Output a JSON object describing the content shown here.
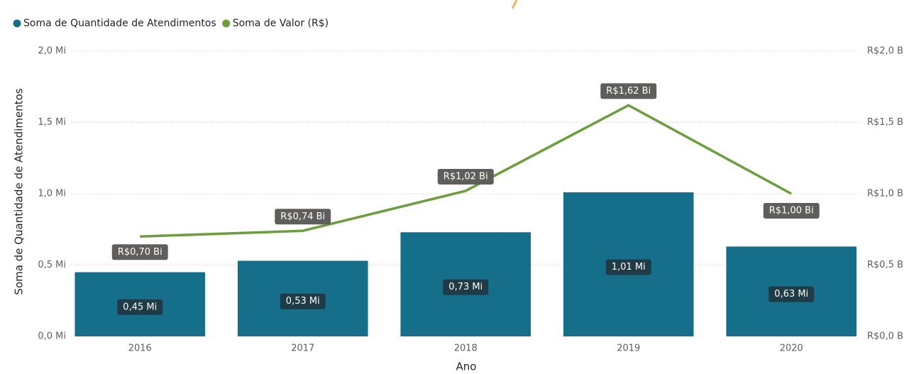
{
  "chart_data": {
    "type": "bar-line",
    "x_label": "Ano",
    "y_label": "Soma de Quantidade de Atendimentos",
    "categories": [
      "2016",
      "2017",
      "2018",
      "2019",
      "2020"
    ],
    "series": [
      {
        "name": "Soma de Quantidade de Atendimentos",
        "type": "bar",
        "color": "#156f8a",
        "values": [
          0.45,
          0.53,
          0.73,
          1.01,
          0.63
        ],
        "value_labels": [
          "0,45 Mi",
          "0,53 Mi",
          "0,73 Mi",
          "1,01 Mi",
          "0,63 Mi"
        ]
      },
      {
        "name": "Soma de Valor (R$)",
        "type": "line",
        "axis": "y2",
        "color": "#6a9f3a",
        "values": [
          0.7,
          0.74,
          1.02,
          1.62,
          1.0
        ],
        "value_labels": [
          "R$0,70 Bi",
          "R$0,74 Bi",
          "R$1,02 Bi",
          "R$1,62 Bi",
          "R$1,00 Bi"
        ]
      }
    ],
    "ylim": [
      0,
      2
    ],
    "yticks": [
      {
        "value": 0,
        "label": "0,0 Mi"
      },
      {
        "value": 0.5,
        "label": "0,5 Mi"
      },
      {
        "value": 1,
        "label": "1,0 Mi"
      },
      {
        "value": 1.5,
        "label": "1,5 Mi"
      },
      {
        "value": 2,
        "label": "2,0 Mi"
      }
    ],
    "y2lim": [
      0,
      2
    ],
    "y2ticks": [
      {
        "value": 0,
        "label": "R$0,0 B"
      },
      {
        "value": 0.5,
        "label": "R$0,5 B"
      },
      {
        "value": 1,
        "label": "R$1,0 B"
      },
      {
        "value": 1.5,
        "label": "R$1,5 B"
      },
      {
        "value": 2,
        "label": "R$2,0 B"
      }
    ],
    "grid": true,
    "legend": "top-left"
  }
}
